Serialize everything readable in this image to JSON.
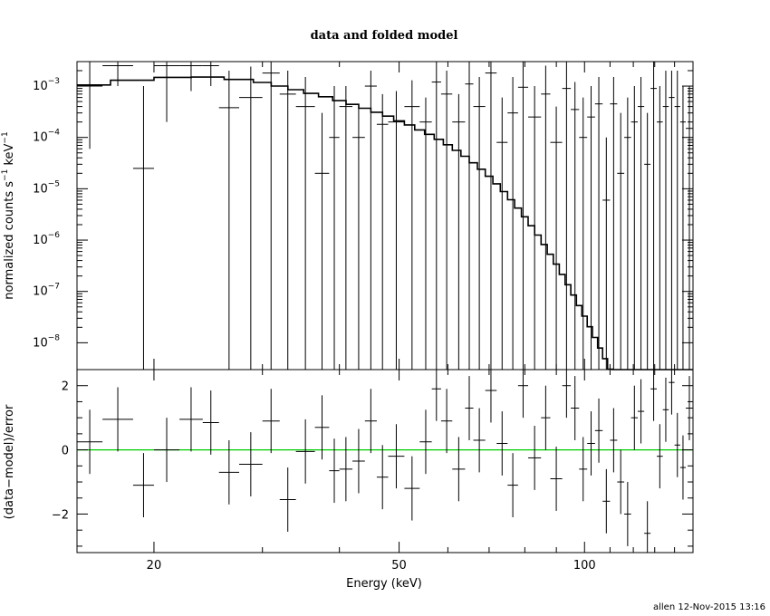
{
  "chart_data": [
    {
      "type": "scatter",
      "title": "data and folded model",
      "xlabel": "Energy (keV)",
      "ylabel_parts": [
        "normalized counts s",
        "−1",
        " keV",
        "−1"
      ],
      "ylabel": "normalized counts s−1 keV−1",
      "xscale": "log",
      "yscale": "log",
      "xlim": [
        15,
        150
      ],
      "ylim": [
        3e-09,
        0.003
      ],
      "yticks": [
        {
          "value": 1e-08,
          "base": "10",
          "exp": "−8"
        },
        {
          "value": 1e-07,
          "base": "10",
          "exp": "−7"
        },
        {
          "value": 1e-06,
          "base": "10",
          "exp": "−6"
        },
        {
          "value": 1e-05,
          "base": "10",
          "exp": "−5"
        },
        {
          "value": 0.0001,
          "base": "10",
          "exp": "−4"
        },
        {
          "value": 0.001,
          "base": "10",
          "exp": "−3"
        }
      ],
      "series": [
        {
          "style": "crosses",
          "bins": [
            [
              15,
              16.5,
              0.001,
              6e-05,
              0.003
            ],
            [
              16.5,
              18.5,
              0.0025,
              0.001,
              0.005
            ],
            [
              18.5,
              20.0,
              2.5e-05,
              3e-09,
              0.001
            ],
            [
              20.0,
              22.0,
              0.0025,
              0.0002,
              0.005
            ],
            [
              22.0,
              24.0,
              0.0025,
              0.0008,
              0.005
            ],
            [
              24.0,
              25.5,
              0.0025,
              0.001,
              0.005
            ],
            [
              25.5,
              27.5,
              0.00038,
              3e-09,
              0.002
            ],
            [
              27.5,
              30.0,
              0.0006,
              3e-09,
              0.0024
            ],
            [
              30.0,
              32.0,
              0.0018,
              3e-09,
              0.004
            ],
            [
              32.0,
              34.0,
              0.0007,
              3e-09,
              0.002
            ],
            [
              34.0,
              36.5,
              0.0004,
              3e-09,
              0.0015
            ],
            [
              36.5,
              38.5,
              2e-05,
              3e-09,
              0.0003
            ],
            [
              38.5,
              40.0,
              0.0001,
              3e-09,
              0.001
            ],
            [
              40.0,
              42.0,
              0.0004,
              3e-09,
              0.001
            ],
            [
              42.0,
              44.0,
              0.0001,
              3e-09,
              0.0004
            ],
            [
              44.0,
              46.0,
              0.001,
              3e-09,
              0.002
            ],
            [
              46.0,
              48.0,
              0.00018,
              3e-09,
              0.0007
            ],
            [
              48.0,
              51.0,
              0.0002,
              3e-09,
              0.0008
            ],
            [
              51.0,
              54.0,
              0.0004,
              3e-09,
              0.0013
            ],
            [
              54.0,
              56.5,
              0.0002,
              3e-09,
              0.0006
            ],
            [
              56.5,
              58.5,
              0.0012,
              3e-09,
              0.003
            ],
            [
              58.5,
              61.0,
              0.0007,
              3e-09,
              0.002
            ],
            [
              61.0,
              64.0,
              0.0002,
              3e-09,
              0.0007
            ],
            [
              64.0,
              66.0,
              0.0011,
              3e-09,
              0.003
            ],
            [
              66.0,
              69.0,
              0.0004,
              3e-09,
              0.0015
            ],
            [
              69.0,
              72.0,
              0.0018,
              3e-09,
              0.004
            ],
            [
              72.0,
              75.0,
              8e-05,
              3e-09,
              0.0006
            ],
            [
              75.0,
              78.0,
              0.0003,
              3e-09,
              0.0015
            ],
            [
              78.0,
              81.0,
              0.00095,
              3e-09,
              0.003
            ],
            [
              81.0,
              85.0,
              0.00025,
              3e-09,
              0.001
            ],
            [
              85.0,
              88.0,
              0.0007,
              3e-09,
              0.0025
            ],
            [
              88.0,
              92.0,
              8e-05,
              3e-09,
              0.0004
            ],
            [
              92.0,
              95.0,
              0.0009,
              3e-09,
              0.003
            ],
            [
              95.0,
              98.0,
              0.00035,
              3e-09,
              0.0012
            ],
            [
              98.0,
              101.0,
              0.0001,
              3e-09,
              0.0006
            ],
            [
              101.0,
              104.0,
              0.00025,
              3e-09,
              0.001
            ],
            [
              104.0,
              107.0,
              0.00045,
              3e-09,
              0.0015
            ],
            [
              107.0,
              110.0,
              6e-06,
              3e-09,
              0.0001
            ],
            [
              110.0,
              113.0,
              0.00045,
              3e-09,
              0.0015
            ],
            [
              113.0,
              116.0,
              2e-05,
              3e-09,
              0.0003
            ],
            [
              116.0,
              119.0,
              0.0001,
              3e-09,
              0.0006
            ],
            [
              119.0,
              122.0,
              0.0002,
              3e-09,
              0.001
            ],
            [
              122.0,
              125.0,
              0.0004,
              3e-09,
              0.0015
            ],
            [
              125.0,
              128.0,
              3e-05,
              3e-09,
              0.0003
            ],
            [
              128.0,
              131.0,
              0.0009,
              3e-09,
              0.003
            ],
            [
              131.0,
              134.0,
              0.0002,
              3e-09,
              0.001
            ],
            [
              134.0,
              137.0,
              0.0004,
              3e-09,
              0.002
            ],
            [
              137.0,
              140.0,
              0.0006,
              3e-09,
              0.002
            ],
            [
              140.0,
              143.0,
              0.0004,
              3e-09,
              0.002
            ],
            [
              143.0,
              146.0,
              0.0002,
              3e-09,
              0.001
            ],
            [
              146.0,
              150.0,
              0.00015,
              3e-09,
              0.001
            ]
          ]
        },
        {
          "style": "histogram",
          "edges": [
            15,
            17,
            20,
            23,
            26,
            29,
            31,
            33,
            35,
            37,
            39,
            41,
            43,
            45,
            47,
            49,
            51,
            53,
            55,
            57,
            59,
            61,
            63,
            65,
            67,
            69,
            71,
            73,
            75,
            77,
            79,
            81,
            83,
            85,
            87,
            89,
            91,
            93,
            95,
            97,
            99,
            101,
            103,
            105,
            107,
            109,
            111,
            113,
            115,
            117,
            119,
            121,
            123,
            125,
            127,
            129,
            131,
            133,
            135,
            137,
            139,
            141,
            143,
            145,
            147,
            150
          ],
          "values": [
            0.00105,
            0.0013,
            0.00148,
            0.0015,
            0.00135,
            0.00118,
            0.001,
            0.00085,
            0.00072,
            0.00062,
            0.00052,
            0.00044,
            0.00037,
            0.00031,
            0.00026,
            0.00021,
            0.000175,
            0.00014,
            0.000115,
            9.2e-05,
            7.2e-05,
            5.6e-05,
            4.3e-05,
            3.2e-05,
            2.4e-05,
            1.75e-05,
            1.25e-05,
            8.8e-06,
            6.1e-06,
            4.2e-06,
            2.85e-06,
            1.9e-06,
            1.25e-06,
            8.2e-07,
            5.3e-07,
            3.4e-07,
            2.15e-07,
            1.35e-07,
            8.5e-08,
            5.3e-08,
            3.3e-08,
            2.05e-08,
            1.27e-08,
            7.9e-09,
            4.9e-09,
            3.05e-09,
            3e-09,
            3e-09,
            3e-09,
            3e-09,
            3e-09,
            3e-09,
            3e-09,
            3e-09,
            3e-09,
            3e-09,
            3e-09,
            3e-09,
            3e-09,
            3e-09,
            3e-09,
            3e-09,
            3e-09,
            3e-09,
            3e-09
          ]
        }
      ]
    },
    {
      "type": "scatter",
      "xlabel": "Energy (keV)",
      "ylabel": "(data−model)/error",
      "xscale": "log",
      "xlim": [
        15,
        150
      ],
      "ylim": [
        -3.2,
        2.5
      ],
      "xticks": [
        {
          "value": 20,
          "label": "20"
        },
        {
          "value": 50,
          "label": "50"
        },
        {
          "value": 100,
          "label": "100"
        }
      ],
      "yticks": [
        {
          "value": -2,
          "label": "−2"
        },
        {
          "value": 0,
          "label": "0"
        },
        {
          "value": 2,
          "label": "2"
        }
      ],
      "reference_line": {
        "y": 0,
        "color": "#00cc00"
      },
      "series": [
        {
          "style": "crosses",
          "points": [
            [
              15.0,
              16.5,
              0.25
            ],
            [
              16.5,
              18.5,
              0.95
            ],
            [
              18.5,
              20.0,
              -1.1
            ],
            [
              20.0,
              22.0,
              0.0
            ],
            [
              22.0,
              24.0,
              0.95
            ],
            [
              24.0,
              25.5,
              0.85
            ],
            [
              25.5,
              27.5,
              -0.7
            ],
            [
              27.5,
              30.0,
              -0.45
            ],
            [
              30.0,
              32.0,
              0.9
            ],
            [
              32.0,
              34.0,
              -1.55
            ],
            [
              34.0,
              36.5,
              -0.05
            ],
            [
              36.5,
              38.5,
              0.7
            ],
            [
              38.5,
              40.0,
              -0.65
            ],
            [
              40.0,
              42.0,
              -0.6
            ],
            [
              42.0,
              44.0,
              -0.35
            ],
            [
              44.0,
              46.0,
              0.9
            ],
            [
              46.0,
              48.0,
              -0.85
            ],
            [
              48.0,
              51.0,
              -0.2
            ],
            [
              51.0,
              54.0,
              -1.2
            ],
            [
              54.0,
              56.5,
              0.25
            ],
            [
              56.5,
              58.5,
              1.9
            ],
            [
              58.5,
              61.0,
              0.9
            ],
            [
              61.0,
              64.0,
              -0.6
            ],
            [
              64.0,
              66.0,
              1.3
            ],
            [
              66.0,
              69.0,
              0.3
            ],
            [
              69.0,
              72.0,
              1.85
            ],
            [
              72.0,
              75.0,
              0.2
            ],
            [
              75.0,
              78.0,
              -1.1
            ],
            [
              78.0,
              81.0,
              2.0
            ],
            [
              81.0,
              85.0,
              -0.25
            ],
            [
              85.0,
              88.0,
              1.0
            ],
            [
              88.0,
              92.0,
              -0.9
            ],
            [
              92.0,
              95.0,
              2.0
            ],
            [
              95.0,
              98.0,
              1.3
            ],
            [
              98.0,
              101.0,
              -0.6
            ],
            [
              101.0,
              104.0,
              0.2
            ],
            [
              104.0,
              107.0,
              0.6
            ],
            [
              107.0,
              110.0,
              -1.6
            ],
            [
              110.0,
              113.0,
              0.3
            ],
            [
              113.0,
              116.0,
              -1.0
            ],
            [
              116.0,
              119.0,
              -2.0
            ],
            [
              119.0,
              122.0,
              1.0
            ],
            [
              122.0,
              125.0,
              1.2
            ],
            [
              125.0,
              128.0,
              -2.6
            ],
            [
              128.0,
              131.0,
              1.9
            ],
            [
              131.0,
              134.0,
              -0.2
            ],
            [
              134.0,
              137.0,
              1.25
            ],
            [
              137.0,
              140.0,
              2.1
            ],
            [
              140.0,
              143.0,
              0.15
            ],
            [
              143.0,
              146.0,
              -0.55
            ],
            [
              146.0,
              150.0,
              1.3
            ]
          ],
          "error": 1.0
        }
      ]
    }
  ],
  "footer": "allen 12-Nov-2015 13:16"
}
